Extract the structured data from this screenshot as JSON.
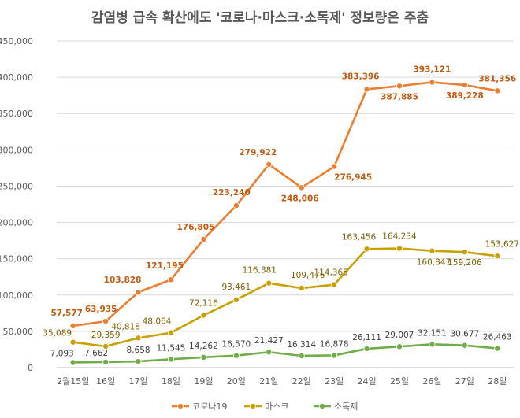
{
  "chart_data": {
    "type": "line",
    "title": "감염병 급속 확산에도 '코로나·마스크·소독제' 정보량은 주춤",
    "xlabel": "",
    "ylabel": "",
    "categories": [
      "2월15일",
      "16일",
      "17일",
      "18일",
      "19일",
      "20일",
      "21일",
      "22일",
      "23일",
      "24일",
      "25일",
      "26일",
      "27일",
      "28일"
    ],
    "ylim": [
      0,
      450000
    ],
    "yticks": [
      0,
      50000,
      100000,
      150000,
      200000,
      250000,
      300000,
      350000,
      400000,
      450000
    ],
    "ytick_labels": [
      "0",
      "50,000",
      "100,000",
      "150,000",
      "200,000",
      "250,000",
      "300,000",
      "350,000",
      "400,000",
      "450,000"
    ],
    "grid": "horizontal",
    "legend_position": "bottom",
    "series": [
      {
        "name": "코로나19",
        "color": "#ED7D31",
        "label_color": "#C55A11",
        "values": [
          57577,
          63935,
          103828,
          121195,
          176805,
          223240,
          279922,
          248006,
          276945,
          383396,
          387885,
          393121,
          389228,
          381356
        ],
        "labels": [
          "57,577",
          "63,935",
          "103,828",
          "121,195",
          "176,805",
          "223,240",
          "279,922",
          "248,006",
          "276,945",
          "383,396",
          "387,885",
          "393,121",
          "389,228",
          "381,356"
        ]
      },
      {
        "name": "마스크",
        "color": "#C9A000",
        "label_color": "#7F6000",
        "values": [
          35089,
          29359,
          40818,
          48064,
          72116,
          93461,
          116381,
          109476,
          114365,
          163456,
          164234,
          160847,
          159206,
          153627
        ],
        "labels": [
          "35,089",
          "29,359",
          "40,818",
          "48,064",
          "72,116",
          "93,461",
          "116,381",
          "109,476",
          "114,365",
          "163,456",
          "164,234",
          "160,847",
          "159,206",
          "153,627"
        ]
      },
      {
        "name": "소독제",
        "color": "#70AD47",
        "label_color": "#404040",
        "values": [
          7093,
          7662,
          8658,
          11545,
          14262,
          16570,
          21427,
          16314,
          16878,
          26111,
          29007,
          32151,
          30677,
          26463
        ],
        "labels": [
          "7,093",
          "7,662",
          "8,658",
          "11,545",
          "14,262",
          "16,570",
          "21,427",
          "16,314",
          "16,878",
          "26,111",
          "29,007",
          "32,151",
          "30,677",
          "26,463"
        ]
      }
    ]
  }
}
